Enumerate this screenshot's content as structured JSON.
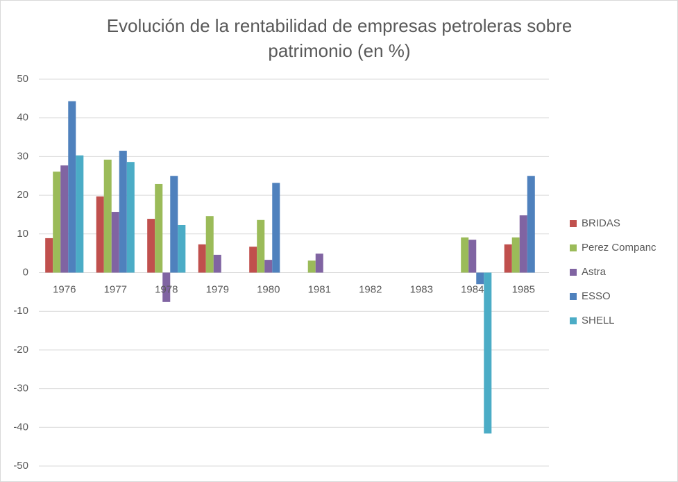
{
  "chart_data": {
    "type": "bar",
    "title": "Evolución de la rentabilidad de empresas petroleras sobre patrimonio (en %)",
    "categories": [
      "1976",
      "1977",
      "1978",
      "1979",
      "1980",
      "1981",
      "1982",
      "1983",
      "1984",
      "1985"
    ],
    "series": [
      {
        "name": "BRIDAS",
        "color": "#c0504d",
        "values": [
          8.9,
          19.7,
          13.9,
          7.3,
          6.7,
          null,
          null,
          null,
          null,
          7.3
        ]
      },
      {
        "name": "Perez Companc",
        "color": "#9bbb59",
        "values": [
          26.1,
          29.2,
          22.9,
          14.6,
          13.6,
          3.1,
          null,
          null,
          9.1,
          9.1
        ]
      },
      {
        "name": "Astra",
        "color": "#8064a2",
        "values": [
          27.7,
          15.7,
          -7.6,
          4.6,
          3.3,
          4.9,
          null,
          null,
          8.5,
          14.8
        ]
      },
      {
        "name": "ESSO",
        "color": "#4f81bd",
        "values": [
          44.3,
          31.5,
          25.0,
          null,
          23.2,
          null,
          null,
          null,
          -3.0,
          25.0
        ]
      },
      {
        "name": "SHELL",
        "color": "#4bacc6",
        "values": [
          30.3,
          28.6,
          12.3,
          null,
          null,
          null,
          null,
          null,
          -41.6,
          null
        ]
      }
    ],
    "ylim": [
      -50,
      50
    ],
    "yticks": [
      -50,
      -40,
      -30,
      -20,
      -10,
      0,
      10,
      20,
      30,
      40,
      50
    ],
    "grid": true,
    "legend": "right"
  }
}
